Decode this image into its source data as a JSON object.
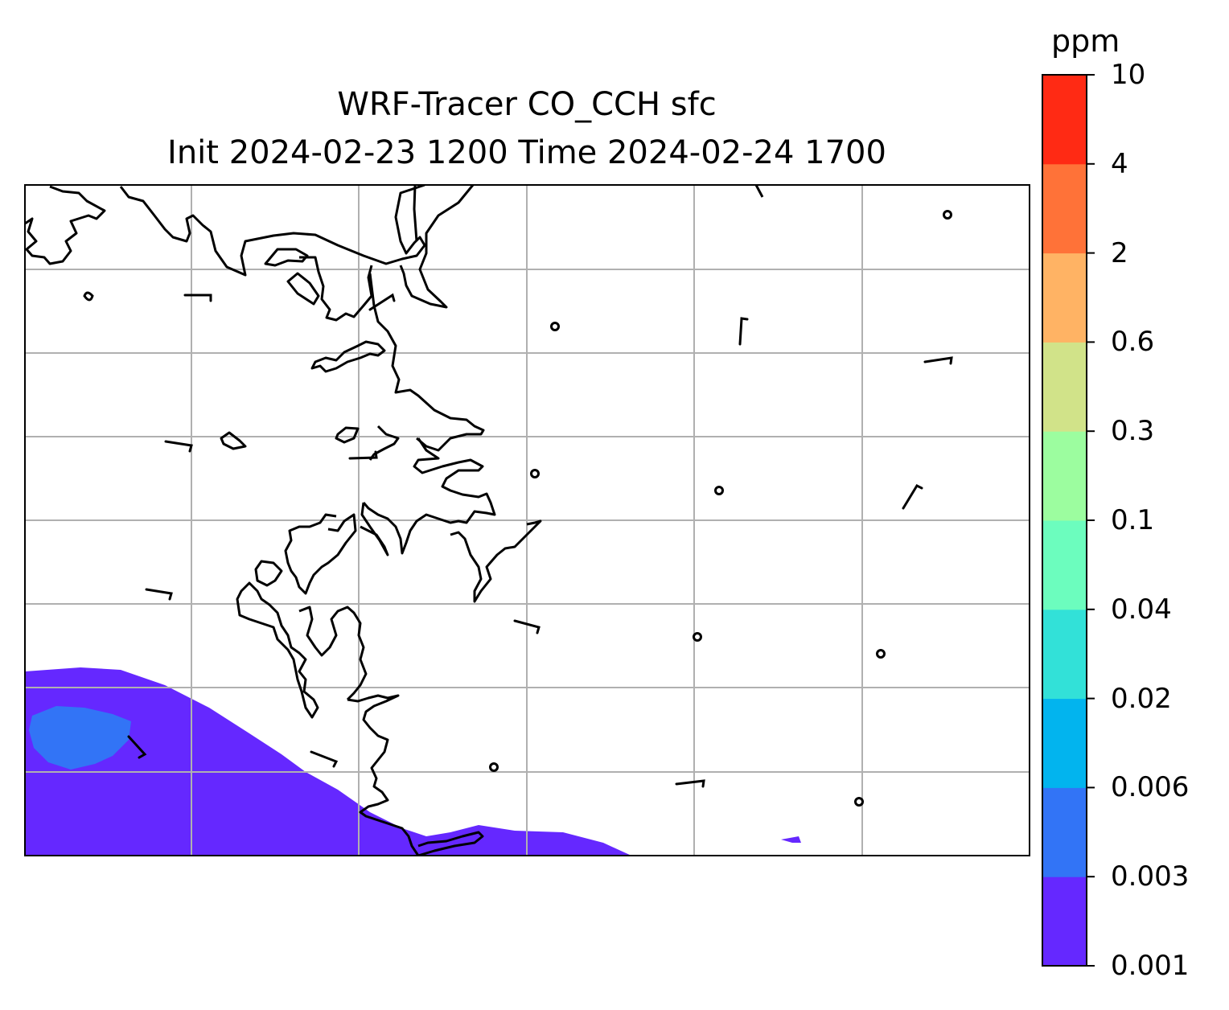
{
  "title": {
    "line1": "WRF-Tracer CO_CCH sfc",
    "line2": "Init 2024-02-23 1200 Time 2024-02-24 1700"
  },
  "colorbar": {
    "unit": "ppm",
    "levels": [
      "0.001",
      "0.003",
      "0.006",
      "0.02",
      "0.04",
      "0.1",
      "0.3",
      "0.6",
      "2",
      "4",
      "10"
    ],
    "colors": [
      "#6528ff",
      "#3274f6",
      "#02b4ee",
      "#32e1d8",
      "#6cfdbe",
      "#9cfd9f",
      "#d1e389",
      "#ffb364",
      "#ff7238",
      "#ff2a14"
    ]
  },
  "map": {
    "gridlines": true,
    "plume_levels_shown": [
      "0.001",
      "0.003"
    ]
  }
}
